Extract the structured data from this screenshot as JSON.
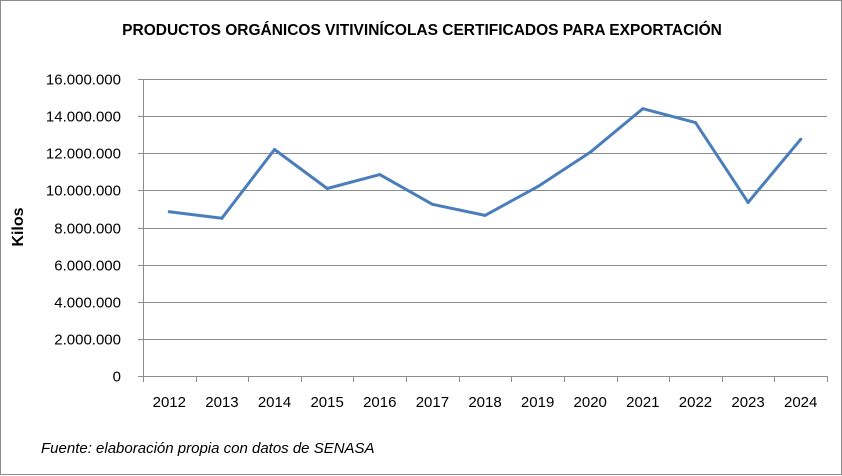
{
  "chart_data": {
    "type": "line",
    "title": "PRODUCTOS ORGÁNICOS VITIVINÍCOLAS CERTIFICADOS PARA EXPORTACIÓN",
    "xlabel": "",
    "ylabel": "Kilos",
    "categories": [
      "2012",
      "2013",
      "2014",
      "2015",
      "2016",
      "2017",
      "2018",
      "2019",
      "2020",
      "2021",
      "2022",
      "2023",
      "2024"
    ],
    "series": [
      {
        "name": "Kilos",
        "color": "#4a7ebb",
        "values": [
          8850000,
          8500000,
          12200000,
          10100000,
          10850000,
          9250000,
          8650000,
          10200000,
          12050000,
          14400000,
          13650000,
          9350000,
          12750000
        ]
      }
    ],
    "ylim": [
      0,
      16000000
    ],
    "yticks": [
      0,
      2000000,
      4000000,
      6000000,
      8000000,
      10000000,
      12000000,
      14000000,
      16000000
    ],
    "ytick_labels": [
      "0",
      "2.000.000",
      "4.000.000",
      "6.000.000",
      "8.000.000",
      "10.000.000",
      "12.000.000",
      "14.000.000",
      "16.000.000"
    ],
    "grid": true,
    "legend": "none",
    "source_note": "Fuente: elaboración propia con datos de SENASA"
  }
}
